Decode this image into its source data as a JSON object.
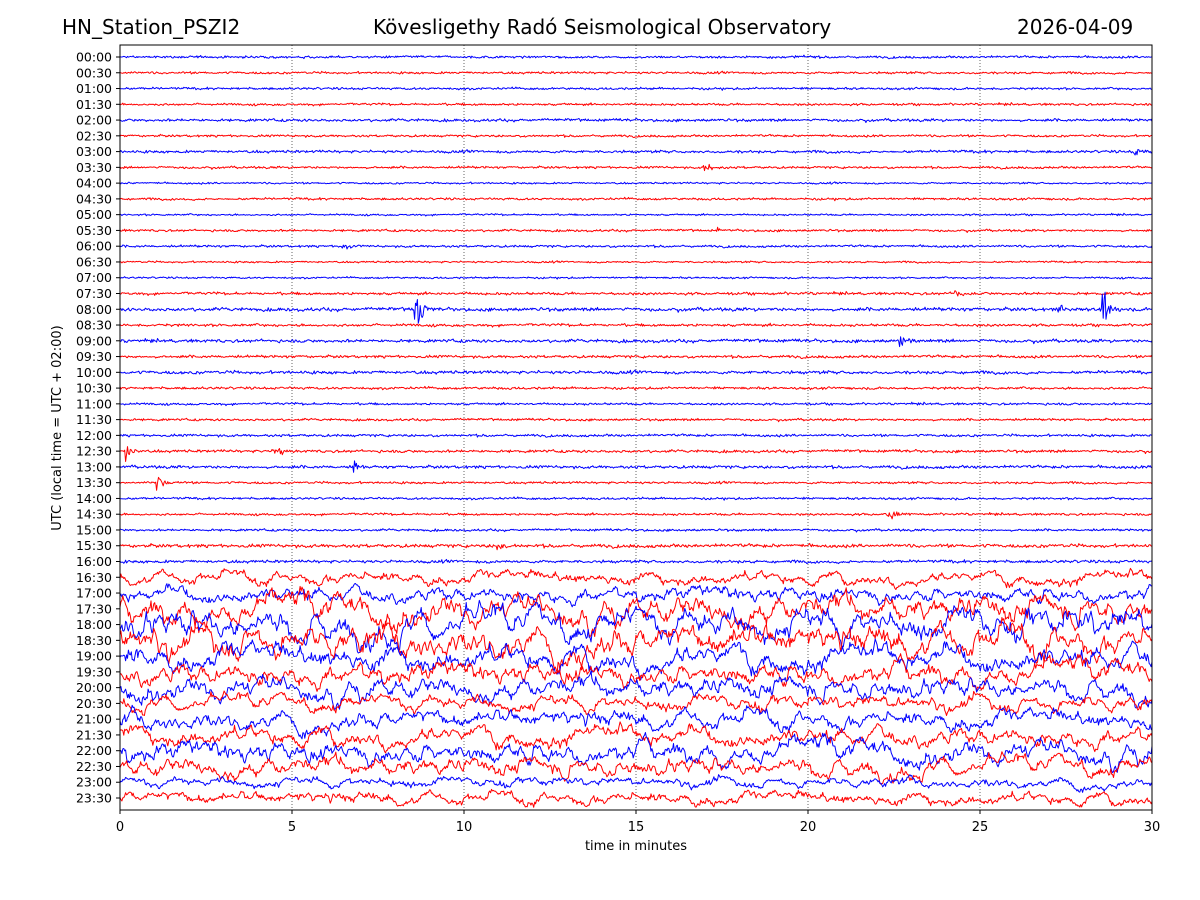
{
  "header": {
    "station": "HN_Station_PSZI2",
    "observatory": "Kövesligethy Radó Seismological Observatory",
    "date": "2026-04-09"
  },
  "chart_data": {
    "type": "line",
    "subtype": "helicorder",
    "xlabel": "time in minutes",
    "ylabel": "UTC (local time = UTC + 02:00)",
    "xlim": [
      0,
      30
    ],
    "xticks": [
      "0",
      "5",
      "10",
      "15",
      "20",
      "25",
      "30"
    ],
    "grid": "vertical dotted at every 5 minutes",
    "colors": [
      "#0000ff",
      "#ff0000"
    ],
    "rows": [
      "00:00",
      "00:30",
      "01:00",
      "01:30",
      "02:00",
      "02:30",
      "03:00",
      "03:30",
      "04:00",
      "04:30",
      "05:00",
      "05:30",
      "06:00",
      "06:30",
      "07:00",
      "07:30",
      "08:00",
      "08:30",
      "09:00",
      "09:30",
      "10:00",
      "10:30",
      "11:00",
      "11:30",
      "12:00",
      "12:30",
      "13:00",
      "13:30",
      "14:00",
      "14:30",
      "15:00",
      "15:30",
      "16:00",
      "16:30",
      "17:00",
      "17:30",
      "18:00",
      "18:30",
      "19:00",
      "19:30",
      "20:00",
      "20:30",
      "21:00",
      "21:30",
      "22:00",
      "22:30",
      "23:00",
      "23:30"
    ],
    "relative_amplitude": [
      1,
      1,
      1,
      1,
      1.2,
      1,
      1.2,
      1,
      0.8,
      1,
      0.8,
      1,
      1,
      0.8,
      0.8,
      1.2,
      1.5,
      1.2,
      1.4,
      1.2,
      1.4,
      1.1,
      1,
      1,
      1.1,
      1.2,
      1.3,
      1,
      1,
      1,
      1,
      1.5,
      1.3,
      4,
      5,
      9,
      10,
      10,
      8,
      7,
      7,
      5,
      6,
      6,
      7,
      6,
      3,
      4
    ],
    "events": [
      {
        "row": "03:00",
        "minute": 29.5,
        "amplitude": 2
      },
      {
        "row": "03:30",
        "minute": 17.0,
        "amplitude": 4
      },
      {
        "row": "05:30",
        "minute": 17.3,
        "amplitude": 2
      },
      {
        "row": "06:00",
        "minute": 6.5,
        "amplitude": 2
      },
      {
        "row": "07:30",
        "minute": 24.3,
        "amplitude": 3
      },
      {
        "row": "08:00",
        "minute": 8.6,
        "amplitude": 10
      },
      {
        "row": "08:00",
        "minute": 27.3,
        "amplitude": 3
      },
      {
        "row": "08:00",
        "minute": 28.6,
        "amplitude": 8
      },
      {
        "row": "09:00",
        "minute": 22.7,
        "amplitude": 4
      },
      {
        "row": "12:30",
        "minute": 0.2,
        "amplitude": 4
      },
      {
        "row": "12:30",
        "minute": 4.5,
        "amplitude": 3
      },
      {
        "row": "13:00",
        "minute": 6.8,
        "amplitude": 3
      },
      {
        "row": "13:30",
        "minute": 1.1,
        "amplitude": 4
      },
      {
        "row": "14:30",
        "minute": 22.3,
        "amplitude": 4
      },
      {
        "row": "15:30",
        "minute": 11.0,
        "amplitude": 3
      }
    ]
  }
}
